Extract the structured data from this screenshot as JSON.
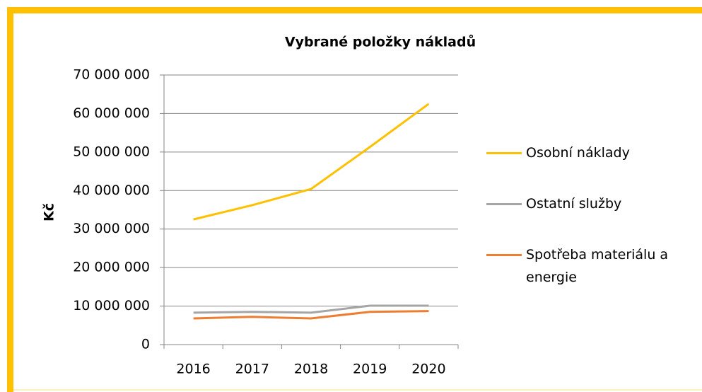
{
  "chart_data": {
    "type": "line",
    "title": "Vybrané položky nákladů",
    "y_label": "Kč",
    "categories": [
      "2016",
      "2017",
      "2018",
      "2019",
      "2020"
    ],
    "series": [
      {
        "name": "Osobní náklady",
        "color": "#ffc000",
        "values": [
          32500000,
          36200000,
          40400000,
          51300000,
          62500000
        ]
      },
      {
        "name": "Ostatní služby",
        "color": "#a5a5a5",
        "values": [
          8300000,
          8500000,
          8300000,
          10100000,
          10100000
        ]
      },
      {
        "name": "Spotřeba materiálu a energie",
        "color": "#ed7d31",
        "values": [
          6800000,
          7200000,
          6800000,
          8500000,
          8700000
        ]
      }
    ],
    "ylim": [
      0,
      70000000
    ],
    "yticks": [
      {
        "value": 0,
        "label": "0"
      },
      {
        "value": 10000000,
        "label": "10 000 000"
      },
      {
        "value": 20000000,
        "label": "20 000 000"
      },
      {
        "value": 30000000,
        "label": "30 000 000"
      },
      {
        "value": 40000000,
        "label": "40 000 000"
      },
      {
        "value": 50000000,
        "label": "50 000 000"
      },
      {
        "value": 60000000,
        "label": "60 000 000"
      },
      {
        "value": 70000000,
        "label": "70 000 000"
      }
    ],
    "grid": true,
    "legend": "right"
  }
}
